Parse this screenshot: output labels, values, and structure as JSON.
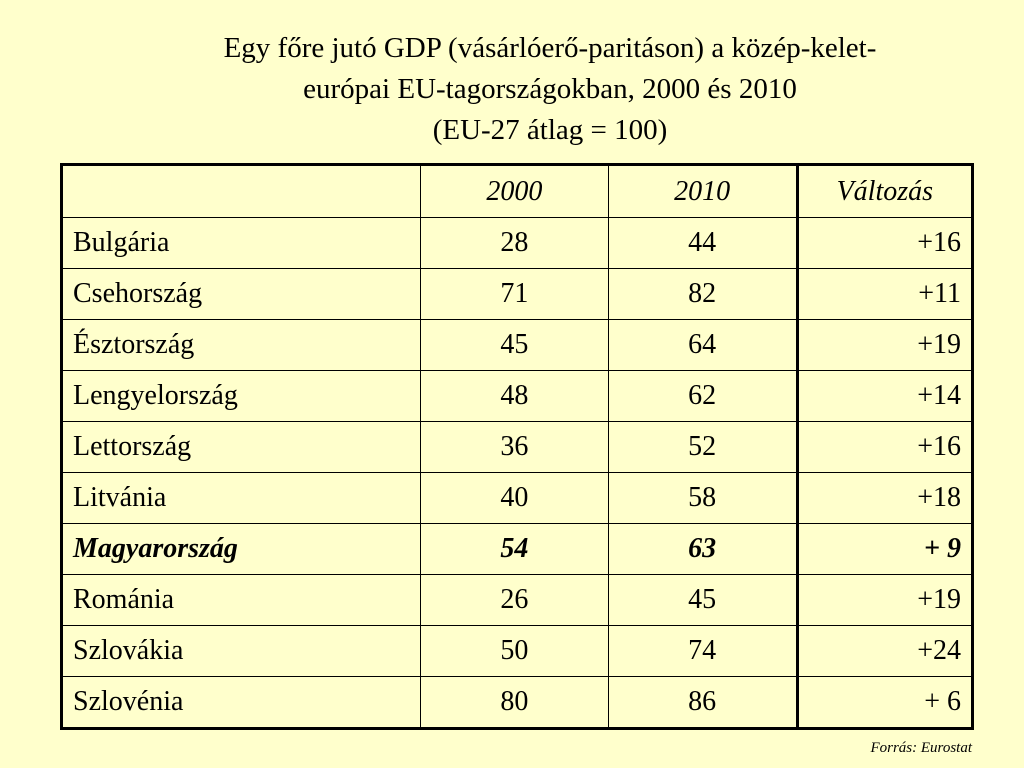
{
  "title": {
    "line1": "Egy főre jutó GDP (vásárlóerő-paritáson) a közép-kelet-",
    "line2": "európai EU-tagországokban, 2000 és 2010",
    "line3": "(EU-27 átlag = 100)"
  },
  "table": {
    "headers": [
      "",
      "2000",
      "2010",
      "Változás"
    ],
    "rows": [
      {
        "country": "Bulgária",
        "y2000": "28",
        "y2010": "44",
        "change": "+16",
        "highlight": false
      },
      {
        "country": "Csehország",
        "y2000": "71",
        "y2010": "82",
        "change": "+11",
        "highlight": false
      },
      {
        "country": "Észtország",
        "y2000": "45",
        "y2010": "64",
        "change": "+19",
        "highlight": false
      },
      {
        "country": "Lengyelország",
        "y2000": "48",
        "y2010": "62",
        "change": "+14",
        "highlight": false
      },
      {
        "country": "Lettország",
        "y2000": "36",
        "y2010": "52",
        "change": "+16",
        "highlight": false
      },
      {
        "country": "Litvánia",
        "y2000": "40",
        "y2010": "58",
        "change": "+18",
        "highlight": false
      },
      {
        "country": "Magyarország",
        "y2000": "54",
        "y2010": "63",
        "change": "+ 9",
        "highlight": true
      },
      {
        "country": "Románia",
        "y2000": "26",
        "y2010": "45",
        "change": "+19",
        "highlight": false
      },
      {
        "country": "Szlovákia",
        "y2000": "50",
        "y2010": "74",
        "change": "+24",
        "highlight": false
      },
      {
        "country": "Szlovénia",
        "y2000": "80",
        "y2010": "86",
        "change": "+ 6",
        "highlight": false
      }
    ]
  },
  "source": "Forrás: Eurostat",
  "colors": {
    "background": "#ffffcc",
    "text": "#000000"
  }
}
